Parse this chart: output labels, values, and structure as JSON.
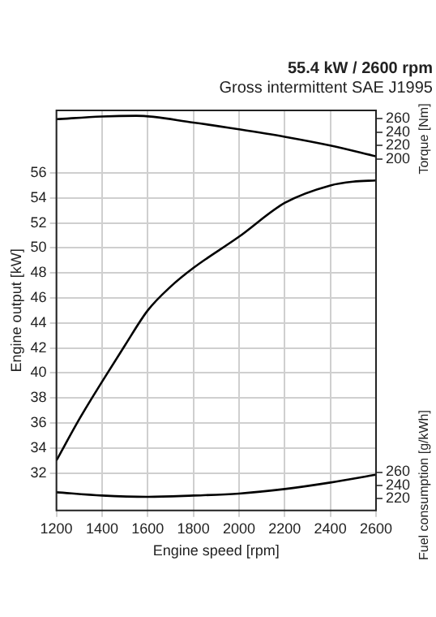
{
  "chart_data": {
    "type": "line",
    "title": "55.4 kW / 2600 rpm",
    "subtitle": "Gross intermittent SAE J1995",
    "xlabel": "Engine speed [rpm]",
    "ylabel": "Engine output [kW]",
    "y2label": "Torque [Nm]",
    "y3label": "Fuel consumption [g/kWh]",
    "x": [
      1200,
      1300,
      1400,
      1500,
      1600,
      1700,
      1800,
      2000,
      2200,
      2400,
      2500,
      2600
    ],
    "series": [
      {
        "color": "#000000",
        "values": [
          33.0,
          36.3,
          39.3,
          42.2,
          45.0,
          46.9,
          48.4,
          50.9,
          53.6,
          55.0,
          55.3,
          55.4
        ]
      },
      {
        "color": "#000000",
        "axis": "y2",
        "x": [
          1200,
          1400,
          1550,
          1800,
          2000,
          2200,
          2400,
          2600
        ],
        "values": [
          259,
          263,
          264,
          254,
          244,
          233,
          220,
          204
        ]
      },
      {
        "color": "#000000",
        "axis": "y3",
        "x": [
          1200,
          1400,
          1600,
          1800,
          2000,
          2200,
          2400,
          2600
        ],
        "values": [
          229,
          224,
          222,
          224,
          227,
          234,
          244,
          256
        ]
      }
    ],
    "xlim": [
      1200,
      2600
    ],
    "xticks": [
      1200,
      1400,
      1600,
      1800,
      2000,
      2200,
      2400,
      2600
    ],
    "ylim": [
      29,
      61
    ],
    "yticks": [
      32,
      34,
      36,
      38,
      40,
      42,
      44,
      46,
      48,
      50,
      52,
      54,
      56
    ],
    "y2lim": [
      -320,
      272
    ],
    "y2ticks": [
      200,
      220,
      240,
      260
    ],
    "y3lim": [
      201,
      816
    ],
    "y3ticks": [
      220,
      240,
      260
    ],
    "grid": true,
    "marker": "none",
    "line_style": "solid",
    "legend": false
  }
}
